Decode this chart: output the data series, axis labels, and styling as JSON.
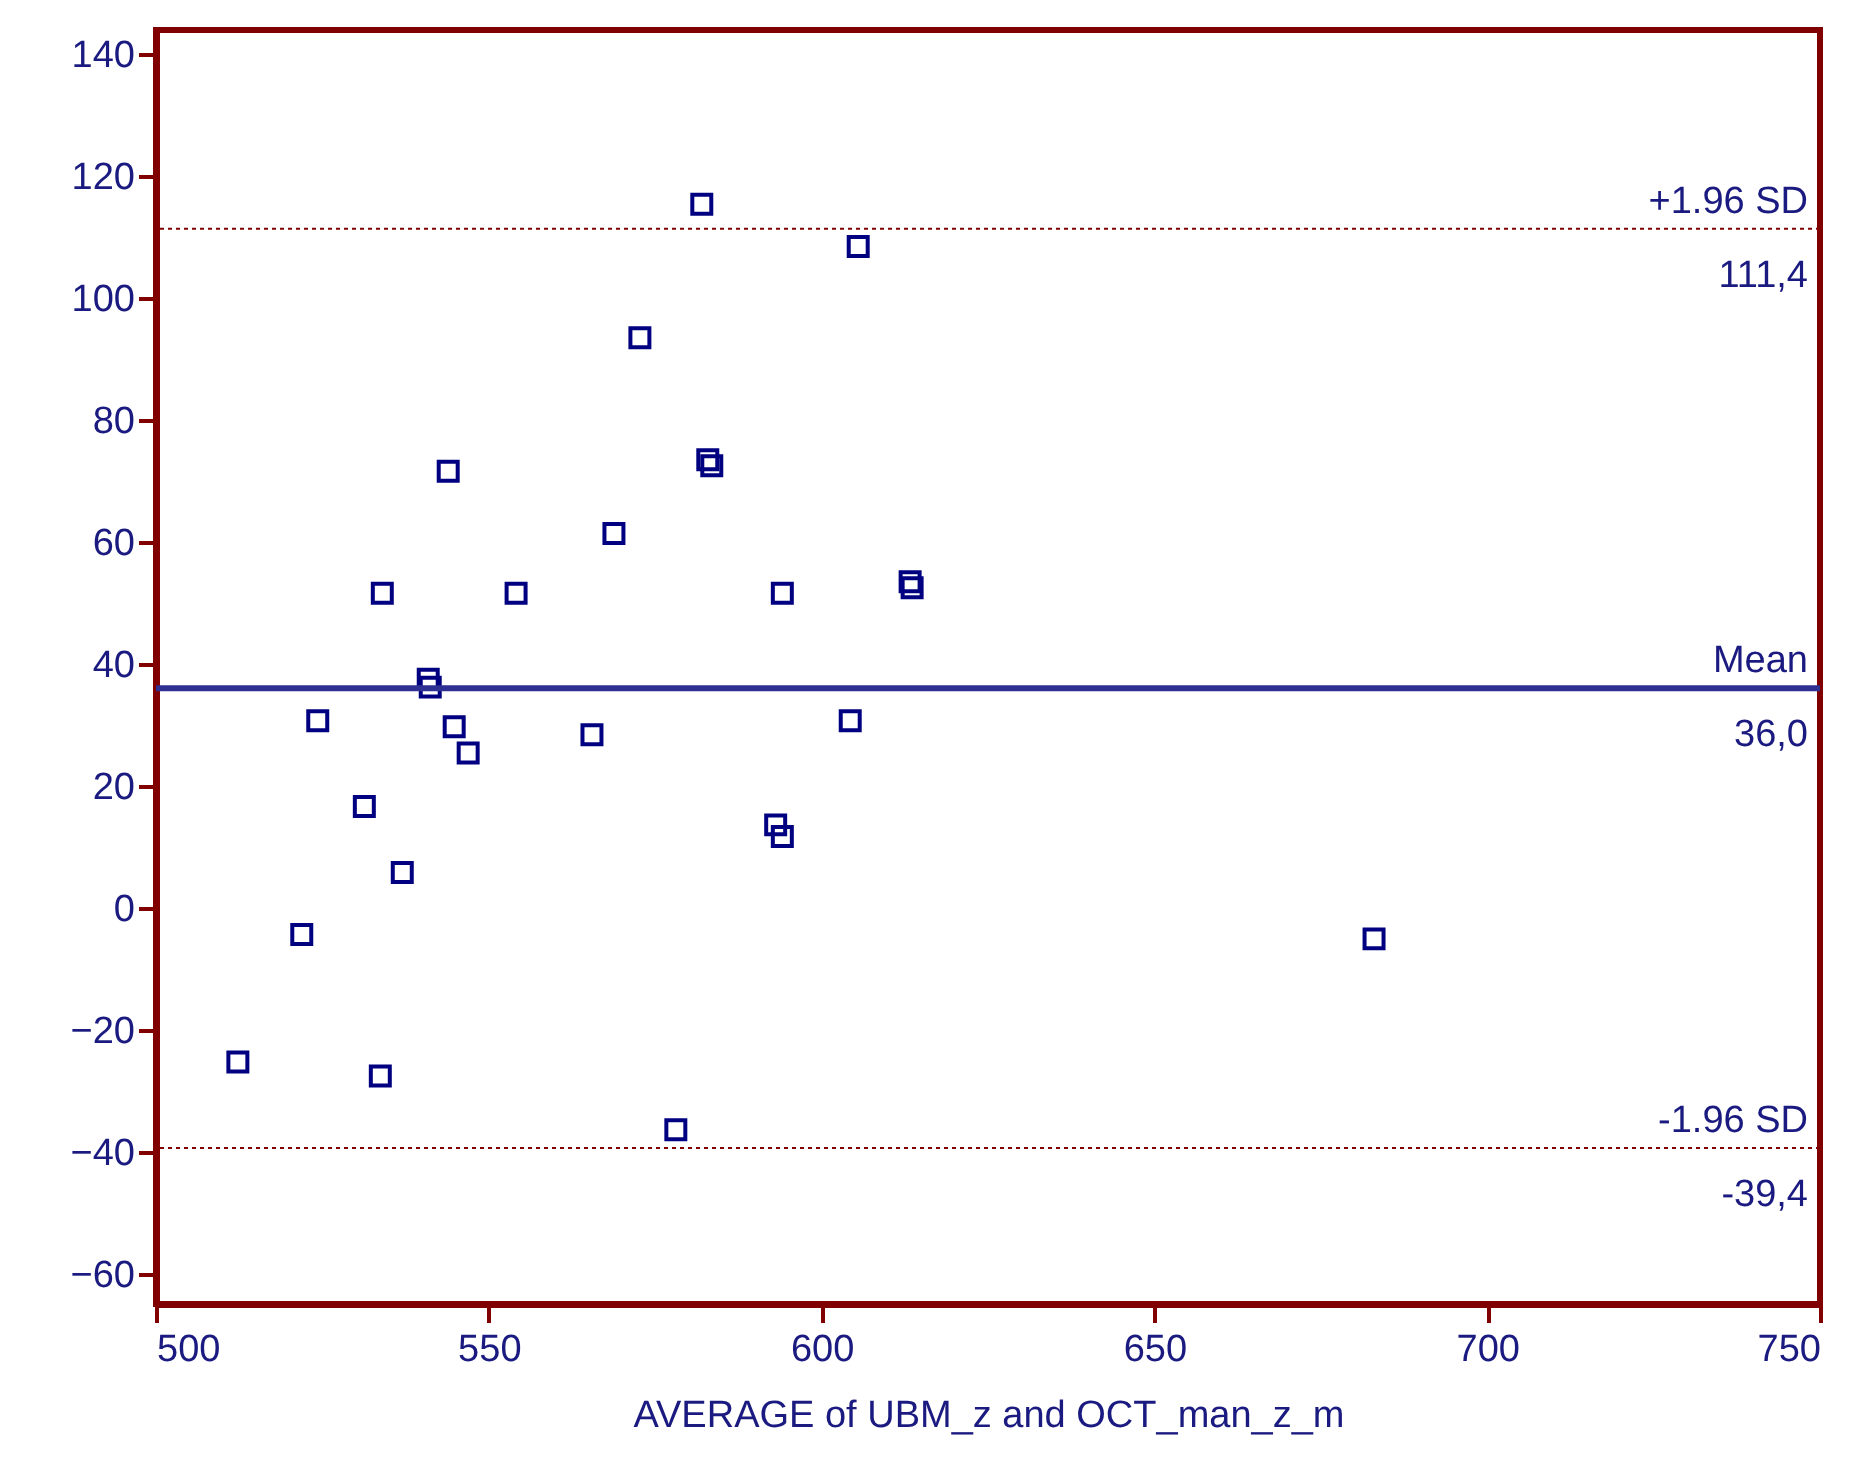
{
  "chart_data": {
    "type": "scatter",
    "xlabel": "AVERAGE of UBM_z and OCT_man_z_m",
    "x": [
      512.3,
      521.9,
      524.3,
      531.3,
      533.7,
      534.0,
      537.0,
      540.9,
      541.2,
      543.9,
      544.8,
      546.9,
      554.1,
      565.5,
      568.8,
      572.7,
      578.1,
      582.0,
      582.9,
      583.5,
      593.1,
      594.1,
      594.1,
      604.3,
      605.5,
      613.3,
      613.6,
      683.0
    ],
    "series": [
      {
        "color": "#000080",
        "values": [
          -25.3,
          -4.4,
          30.7,
          16.6,
          -27.6,
          51.6,
          5.8,
          37.5,
          36.2,
          71.6,
          29.7,
          25.4,
          51.6,
          28.4,
          61.4,
          93.5,
          -36.4,
          115.4,
          73.5,
          72.5,
          13.6,
          11.7,
          51.6,
          30.7,
          108.5,
          53.5,
          52.5,
          -5.1
        ]
      }
    ],
    "marker": "square",
    "xlim": [
      500,
      750
    ],
    "xticks": [
      500,
      550,
      600,
      650,
      700,
      750
    ],
    "ylim": [
      -65,
      144
    ],
    "yticks": [
      -60,
      -40,
      -20,
      0,
      20,
      40,
      60,
      80,
      100,
      120,
      140
    ],
    "ref_lines": [
      {
        "axis": "y",
        "value": 111.4,
        "label": "+1.96 SD",
        "color": "#800000",
        "line_style": "dotted"
      },
      {
        "axis": "y",
        "value": 36.0,
        "label": "Mean",
        "color": "#2e3192",
        "line_style": "solid"
      },
      {
        "axis": "y",
        "value": -39.4,
        "label": "-1.96 SD",
        "color": "#800000",
        "line_style": "dotted"
      }
    ],
    "annotations": [
      "111,4",
      "36,0",
      "-39,4"
    ]
  }
}
